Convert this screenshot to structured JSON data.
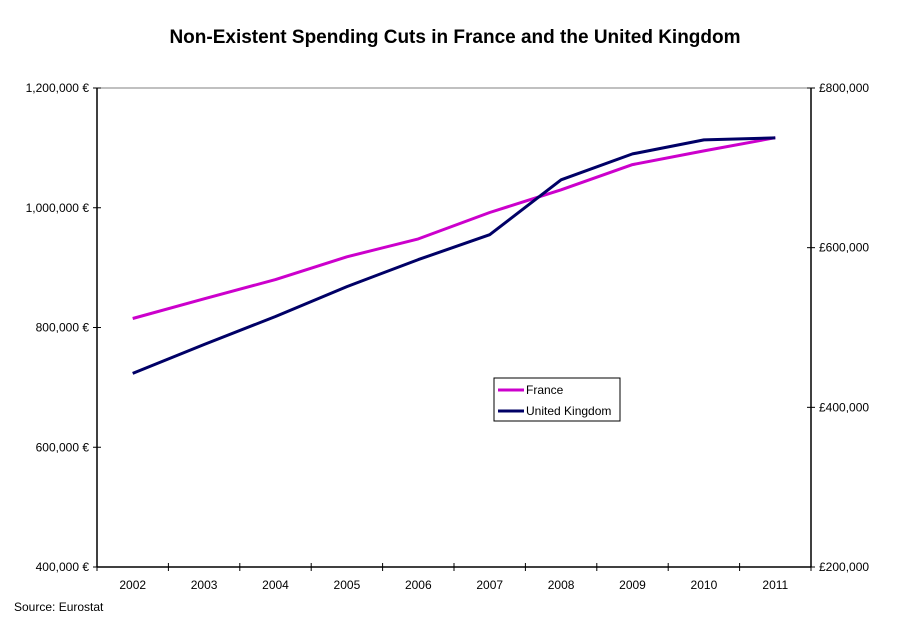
{
  "chart_data": {
    "type": "line",
    "title": "Non-Existent Spending Cuts in France and the United Kingdom",
    "xlabel": "",
    "ylabel_left": "",
    "ylabel_right": "",
    "categories": [
      "2002",
      "2003",
      "2004",
      "2005",
      "2006",
      "2007",
      "2008",
      "2009",
      "2010",
      "2011"
    ],
    "y_left": {
      "range": [
        400000,
        1200000
      ],
      "ticks": [
        400000,
        600000,
        800000,
        1000000,
        1200000
      ],
      "tick_labels": [
        "400,000 €",
        "600,000 €",
        "800,000 €",
        "1,000,000 €",
        "1,200,000 €"
      ]
    },
    "y_right": {
      "range": [
        200000,
        800000
      ],
      "ticks": [
        200000,
        400000,
        600000,
        800000
      ],
      "tick_labels": [
        "£200,000",
        "£400,000",
        "£600,000",
        "£800,000"
      ]
    },
    "series": [
      {
        "name": "France",
        "axis": "left",
        "color": "#cc00cc",
        "values": [
          815000,
          848000,
          880000,
          918000,
          948000,
          992000,
          1030000,
          1072000,
          1095000,
          1117000
        ]
      },
      {
        "name": "United Kingdom",
        "axis": "right",
        "color": "#000066",
        "values": [
          442500,
          478750,
          513750,
          551250,
          585000,
          616250,
          685000,
          717500,
          735000,
          737500
        ]
      }
    ],
    "grid": false,
    "legend_position": "center-right",
    "source": "Source: Eurostat"
  }
}
